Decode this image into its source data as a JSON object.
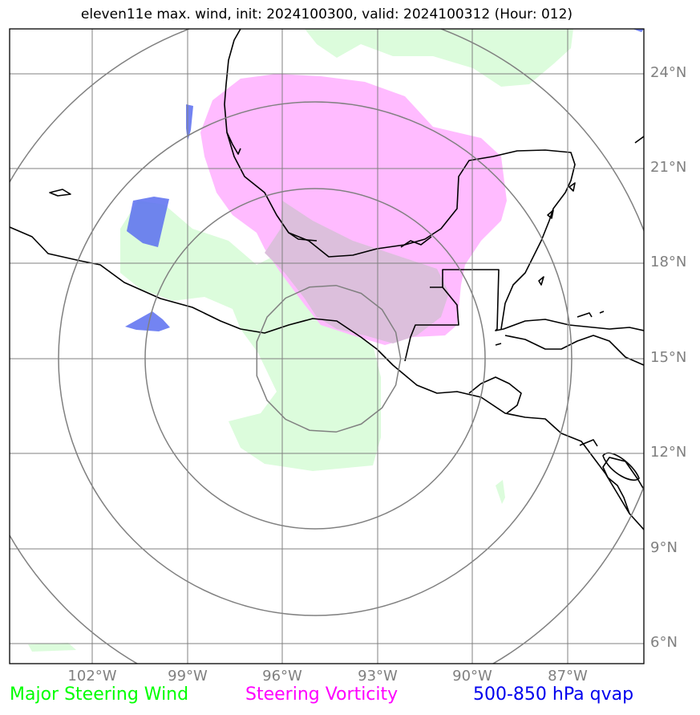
{
  "title": "eleven11e max. wind, init: 2024100300, valid: 2024100312 (Hour: 012)",
  "map": {
    "lat_labels": [
      "24°N",
      "21°N",
      "18°N",
      "15°N",
      "12°N",
      "9°N",
      "6°N"
    ],
    "lon_labels": [
      "102°W",
      "99°W",
      "96°W",
      "93°W",
      "90°W",
      "87°W"
    ],
    "range_rings_center": {
      "lat": 15.0,
      "lon": "94.5°W"
    },
    "colors": {
      "steering_wind": "#00ff00",
      "steering_vorticity": "#ff00ff",
      "qvap": "#0000ee",
      "coastline": "#000000",
      "gridline": "#808080",
      "tick_label": "#808080"
    }
  },
  "legend": {
    "wind": "Major Steering Wind",
    "vorticity": "Steering Vorticity",
    "qvap": "500-850 hPa qvap"
  }
}
